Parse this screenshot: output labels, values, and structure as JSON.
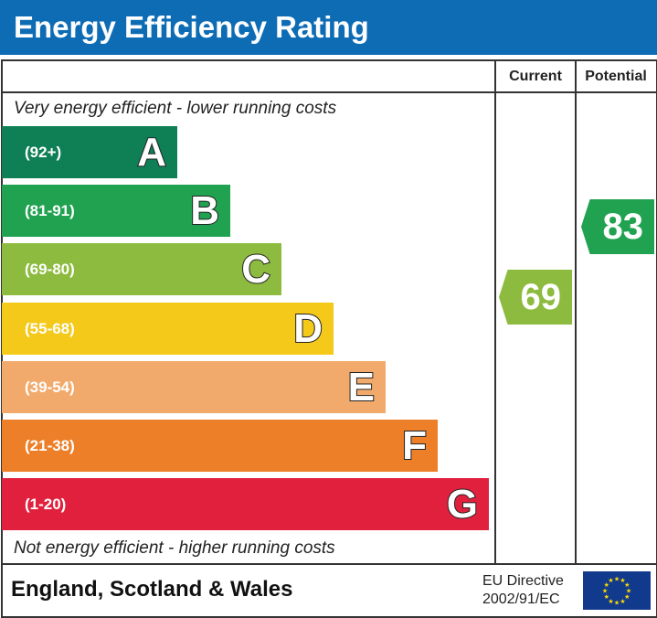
{
  "title": "Energy Efficiency Rating",
  "chart_data": {
    "type": "bar",
    "title": "Energy Efficiency Rating",
    "columns": [
      "Current",
      "Potential"
    ],
    "top_note": "Very energy efficient - lower running costs",
    "bottom_note": "Not energy efficient - higher running costs",
    "bands": [
      {
        "letter": "A",
        "range": "(92+)",
        "color": "#0f7f55"
      },
      {
        "letter": "B",
        "range": "(81-91)",
        "color": "#21a250"
      },
      {
        "letter": "C",
        "range": "(69-80)",
        "color": "#8dbb3f"
      },
      {
        "letter": "D",
        "range": "(55-68)",
        "color": "#f4c91a"
      },
      {
        "letter": "E",
        "range": "(39-54)",
        "color": "#f2aa6c"
      },
      {
        "letter": "F",
        "range": "(21-38)",
        "color": "#ec7f27"
      },
      {
        "letter": "G",
        "range": "(1-20)",
        "color": "#e1203d"
      }
    ],
    "current": {
      "value": "69",
      "band": "C",
      "color": "#8dbb3f"
    },
    "potential": {
      "value": "83",
      "band": "B",
      "color": "#21a250"
    }
  },
  "footer": {
    "region": "England, Scotland & Wales",
    "directive_line1": "EU Directive",
    "directive_line2": "2002/91/EC",
    "flag_icon": "eu-flag-icon"
  }
}
